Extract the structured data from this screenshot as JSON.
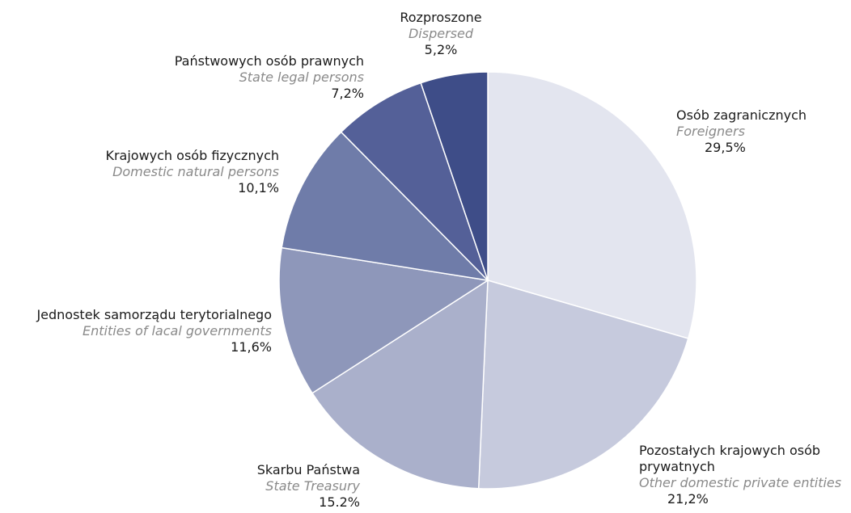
{
  "chart_data": {
    "type": "pie",
    "categories": [
      "Osób zagranicznych",
      "Pozostałych krajowych osób prywatnych",
      "Skarbu Państwa",
      "Jednostek samorządu terytorialnego",
      "Krajowych osób fizycznych",
      "Państwowych osób prawnych",
      "Rozproszone"
    ],
    "categories_en": [
      "Foreigners",
      "Other domestic private entities",
      "State Treasury",
      "Entities of lacal governments",
      "Domestic natural persons",
      "State legal persons",
      "Dispersed"
    ],
    "values": [
      29.5,
      21.2,
      15.2,
      11.6,
      10.1,
      7.2,
      5.2
    ],
    "value_labels": [
      "29,5%",
      "21,2%",
      "15.2%",
      "11,6%",
      "10,1%",
      "7,2%",
      "5,2%"
    ],
    "colors": [
      "#e3e5ef",
      "#c6cadd",
      "#aab0cb",
      "#8e97ba",
      "#6f7ca9",
      "#546098",
      "#3e4d88"
    ]
  }
}
